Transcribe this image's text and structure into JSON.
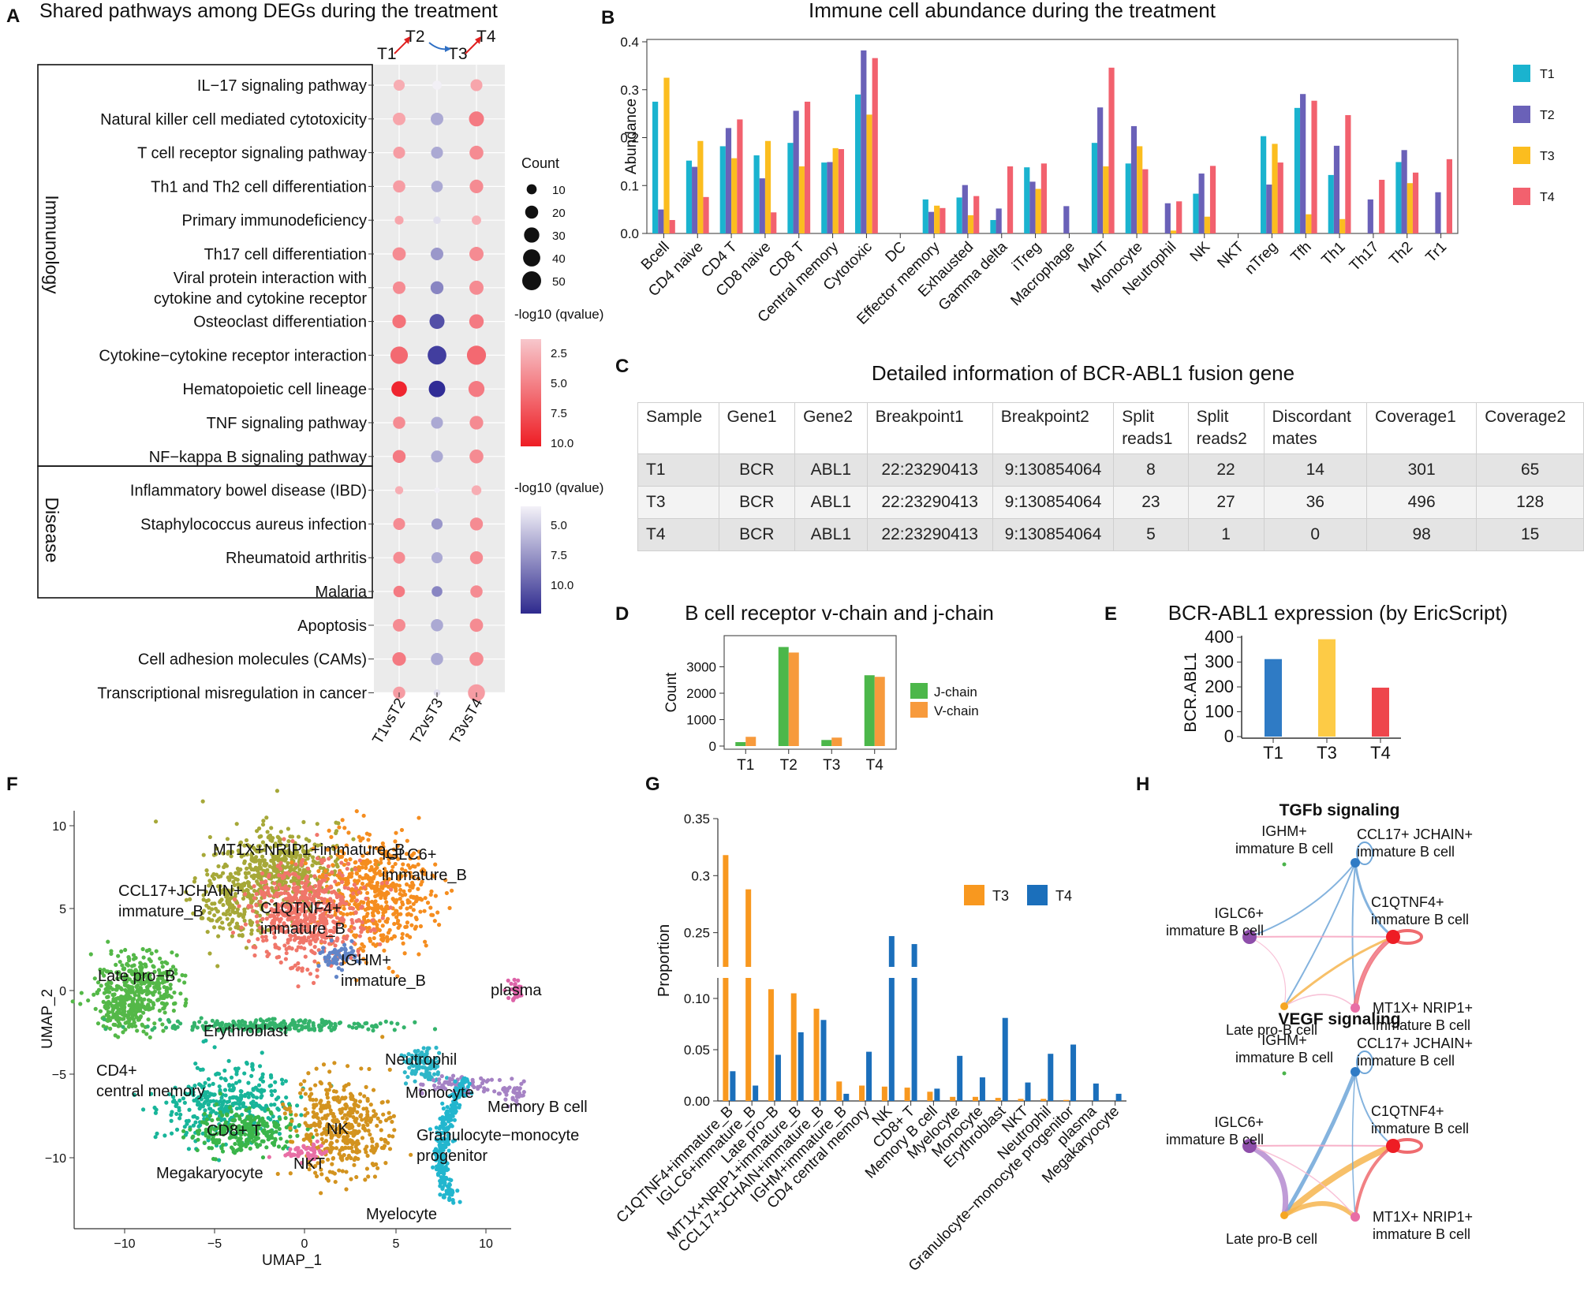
{
  "letters": [
    "A",
    "B",
    "C",
    "D",
    "E",
    "F",
    "G",
    "H"
  ],
  "colors": {
    "T1": "#1ab3cf",
    "T2": "#6a61b8",
    "T3": "#fbbd1f",
    "T4": "#f2616e",
    "jchain": "#4cb74a",
    "vchain": "#f79a3c",
    "e_T1": "#2f7bc5",
    "e_T3": "#fdcb46",
    "e_T4": "#ee464c",
    "g_T3": "#f8981f",
    "g_T4": "#1b6fbb"
  },
  "chart_data": [
    {
      "panel": "A",
      "type": "scatter",
      "title": "Shared pathways among DEGs during the treatment",
      "top_labels": [
        "T1",
        "T2",
        "T3",
        "T4"
      ],
      "x": [
        "T1vsT2",
        "T2vsT3",
        "T3vsT4"
      ],
      "groups": [
        {
          "name": "Immunology",
          "rows": 12
        },
        {
          "name": "Disease",
          "rows": 4
        }
      ],
      "pathways": [
        "IL−17 signaling pathway",
        "Natural killer cell mediated cytotoxicity",
        "T cell receptor signaling pathway",
        "Th1 and Th2 cell differentiation",
        "Primary immunodeficiency",
        "Th17 cell differentiation",
        "Viral protein interaction with|cytokine and cytokine receptor",
        "Osteoclast differentiation",
        "Cytokine−cytokine receptor interaction",
        "Hematopoietic cell lineage",
        "TNF signaling pathway",
        "NF−kappa B signaling pathway",
        "Inflammatory bowel disease (IBD)",
        "Staphylococcus aureus infection",
        "Rheumatoid arthritis",
        "Malaria",
        "Apoptosis",
        "Cell adhesion molecules (CAMs)",
        "Transcriptional misregulation in cancer"
      ],
      "count": [
        [
          10,
          6,
          12
        ],
        [
          14,
          14,
          22
        ],
        [
          12,
          12,
          18
        ],
        [
          13,
          11,
          17
        ],
        [
          5,
          3,
          6
        ],
        [
          16,
          14,
          19
        ],
        [
          14,
          15,
          19
        ],
        [
          17,
          22,
          20
        ],
        [
          32,
          38,
          40
        ],
        [
          24,
          28,
          26
        ],
        [
          13,
          12,
          17
        ],
        [
          15,
          12,
          18
        ],
        [
          4,
          1,
          7
        ],
        [
          12,
          10,
          15
        ],
        [
          12,
          10,
          15
        ],
        [
          11,
          9,
          13
        ],
        [
          14,
          13,
          16
        ],
        [
          17,
          13,
          18
        ],
        [
          13,
          2,
          30
        ]
      ],
      "direction": [
        "up",
        "down",
        "up"
      ],
      "qvalue": [
        [
          2,
          0,
          2.5
        ],
        [
          2.5,
          4,
          5
        ],
        [
          3,
          4,
          4
        ],
        [
          3,
          4,
          4
        ],
        [
          2.5,
          1,
          2
        ],
        [
          4,
          5,
          4
        ],
        [
          4,
          6,
          4
        ],
        [
          5.5,
          9,
          5
        ],
        [
          6,
          10,
          6
        ],
        [
          10,
          11,
          5
        ],
        [
          4,
          4,
          4
        ],
        [
          5,
          4,
          4
        ],
        [
          2,
          0,
          2
        ],
        [
          4,
          5,
          4
        ],
        [
          4,
          4,
          4
        ],
        [
          5,
          6,
          4
        ],
        [
          4,
          4,
          4
        ],
        [
          5,
          4,
          4
        ],
        [
          3,
          1,
          3
        ]
      ],
      "size_legend": {
        "title": "Count",
        "values": [
          10,
          20,
          30,
          40,
          50
        ]
      },
      "color_legend_up": {
        "title": "-log10 (qvalue)",
        "ticks": [
          "2.5",
          "5.0",
          "7.5",
          "10.0"
        ]
      },
      "color_legend_down": {
        "title": "-log10 (qvalue)",
        "ticks": [
          "5.0",
          "7.5",
          "10.0"
        ]
      }
    },
    {
      "panel": "B",
      "type": "bar",
      "title": "Immune cell abundance during the treatment",
      "ylabel": "Abundance",
      "ylim": [
        0,
        0.4
      ],
      "yticks": [
        "0.0",
        "0.1",
        "0.2",
        "0.3",
        "0.4"
      ],
      "categories": [
        "Bcell",
        "CD4 naive",
        "CD4 T",
        "CD8 naive",
        "CD8 T",
        "Central memory",
        "Cytotoxic",
        "DC",
        "Effector memory",
        "Exhausted",
        "Gamma delta",
        "iTreg",
        "Macrophage",
        "MAIT",
        "Monocyte",
        "Neutrophil",
        "NK",
        "NKT",
        "nTreg",
        "Tfh",
        "Th1",
        "Th17",
        "Th2",
        "Tr1"
      ],
      "series": [
        {
          "name": "T1",
          "values": [
            0.275,
            0.152,
            0.182,
            0.163,
            0.189,
            0.148,
            0.29,
            0,
            0.071,
            0.075,
            0.028,
            0.138,
            0,
            0.189,
            0.146,
            0,
            0.083,
            0,
            0.203,
            0.262,
            0.122,
            0,
            0.149,
            0
          ]
        },
        {
          "name": "T2",
          "values": [
            0.05,
            0.139,
            0.22,
            0.115,
            0.256,
            0.149,
            0.382,
            0,
            0.045,
            0.101,
            0.052,
            0.108,
            0.057,
            0.263,
            0.224,
            0.063,
            0.125,
            0,
            0.102,
            0.291,
            0.183,
            0.071,
            0.174,
            0.086
          ]
        },
        {
          "name": "T3",
          "values": [
            0.325,
            0.193,
            0.157,
            0.193,
            0.14,
            0.178,
            0.248,
            0,
            0.058,
            0.038,
            0,
            0.093,
            0,
            0.14,
            0.182,
            0.006,
            0.035,
            0,
            0.187,
            0.04,
            0.03,
            0,
            0.105,
            0
          ]
        },
        {
          "name": "T4",
          "values": [
            0.028,
            0.076,
            0.238,
            0.044,
            0.275,
            0.176,
            0.366,
            0,
            0.053,
            0.078,
            0.14,
            0.146,
            0,
            0.346,
            0.134,
            0.067,
            0.141,
            0,
            0.148,
            0.277,
            0.247,
            0.112,
            0.127,
            0.155
          ]
        }
      ]
    },
    {
      "panel": "C",
      "type": "bar",
      "title": "B cell receptor v-chain and j-chain",
      "ylabel": "Count",
      "ylim": [
        0,
        4000
      ],
      "yticks": [
        "0",
        "1000",
        "2000",
        "3000"
      ],
      "categories": [
        "T1",
        "T2",
        "T3",
        "T4"
      ],
      "series": [
        {
          "name": "J-chain",
          "values": [
            150,
            3750,
            230,
            2680
          ]
        },
        {
          "name": "V-chain",
          "values": [
            350,
            3540,
            320,
            2620
          ]
        }
      ]
    },
    {
      "panel": "E",
      "type": "bar",
      "title": "BCR-ABL1 expression (by EricScript)",
      "ylabel": "BCR.ABL1",
      "ylim": [
        0,
        400
      ],
      "yticks": [
        "0",
        "100",
        "200",
        "300",
        "400"
      ],
      "categories": [
        "T1",
        "T3",
        "T4"
      ],
      "values": [
        312,
        392,
        197
      ]
    },
    {
      "panel": "F",
      "type": "scatter",
      "xlabel": "UMAP_1",
      "ylabel": "UMAP_2",
      "xticks": [
        "−10",
        "−5",
        "0",
        "5",
        "10"
      ],
      "yticks": [
        "10",
        "5",
        "0",
        "−5",
        "−10"
      ],
      "clusters": [
        "MT1X+NRIP1+immature_B",
        "IGLC6+|immature_B",
        "CCL17+JCHAIN+|immature_B",
        "C1QTNF4+|immature_B",
        "IGHM+|immature_B",
        "Late pro−B",
        "plasma",
        "Erythroblast",
        "Neutrophil",
        "Monocyte",
        "Memory B cell",
        "CD4+|central memory",
        "CD8+ T",
        "NK",
        "Granulocyte−monocyte|progenitor",
        "Megakaryocyte",
        "NKT",
        "Myelocyte"
      ]
    },
    {
      "panel": "G",
      "type": "bar",
      "ylabel": "Proportion",
      "yticks": [
        "0.00",
        "0.05",
        "0.10",
        "0.25",
        "0.3",
        "0.35"
      ],
      "categories": [
        "C1QTNF4+immature_B",
        "IGLC6+immature_B",
        "Late pro−B",
        "MT1X+NRIP1+immature_B",
        "CCL17+JCHAIN+immature_B",
        "IGHM+immature_B",
        "CD4 central memory",
        "NK",
        "CD8+ T",
        "Memory B cell",
        "Myelocyte",
        "Monocyte",
        "Erythroblast",
        "NKT",
        "Neutrophil",
        "Granulocyte−monocyte progenitor",
        "plasma",
        "Megakaryocyte"
      ],
      "series": [
        {
          "name": "T3",
          "values": [
            0.318,
            0.288,
            0.109,
            0.105,
            0.09,
            0.019,
            0.015,
            0.014,
            0.013,
            0.009,
            0.004,
            0.004,
            0.003,
            0.002,
            0.002,
            0.001,
            0,
            0
          ]
        },
        {
          "name": "T4",
          "values": [
            0.029,
            0.015,
            0.045,
            0.067,
            0.079,
            0.007,
            0.048,
            0.247,
            0.24,
            0.012,
            0.044,
            0.023,
            0.081,
            0.018,
            0.046,
            0.055,
            0.017,
            0.007
          ]
        }
      ]
    },
    {
      "panel": "H",
      "type": "table",
      "networks": [
        {
          "title": "TGFb signaling",
          "nodes": [
            "IGHM+|immature B cell",
            "CCL17+ JCHAIN+|immature B cell",
            "IGLC6+|immature B cell",
            "C1QTNF4+|immature B cell",
            "Late pro-B cell",
            "MT1X+ NRIP1+|immature B cell"
          ]
        },
        {
          "title": "VEGF signaling",
          "nodes": [
            "IGHM+|immature B cell",
            "CCL17+ JCHAIN+|immature B cell",
            "IGLC6+|immature B cell",
            "C1QTNF4+|immature B cell",
            "Late pro-B cell",
            "MT1X+ NRIP1+|immature B cell"
          ]
        }
      ]
    },
    {
      "panel": "D",
      "type": "table",
      "title": "Detailed information of BCR-ABL1 fusion gene",
      "columns": [
        "Sample",
        "Gene1",
        "Gene2",
        "Breakpoint1",
        "Breakpoint2",
        "Split|reads1",
        "Split|reads2",
        "Discordant|mates",
        "Coverage1",
        "Coverage2"
      ],
      "rows": [
        [
          "T1",
          "BCR",
          "ABL1",
          "22:23290413",
          "9:130854064",
          "8",
          "22",
          "14",
          "301",
          "65"
        ],
        [
          "T3",
          "BCR",
          "ABL1",
          "22:23290413",
          "9:130854064",
          "23",
          "27",
          "36",
          "496",
          "128"
        ],
        [
          "T4",
          "BCR",
          "ABL1",
          "22:23290413",
          "9:130854064",
          "5",
          "1",
          "0",
          "98",
          "15"
        ]
      ]
    }
  ]
}
